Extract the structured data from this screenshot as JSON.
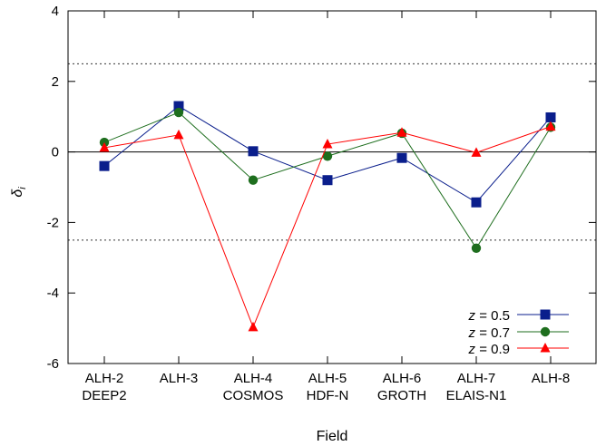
{
  "chart_data": {
    "type": "line",
    "title": "",
    "xlabel": "Field",
    "ylabel": "δ",
    "ylabel_subscript": "i",
    "ylim": [
      -6,
      4
    ],
    "yticks": [
      "4",
      "2",
      "0",
      "-2",
      "-4",
      "-6"
    ],
    "categories": [
      {
        "line1": "ALH-2",
        "line2": "DEEP2"
      },
      {
        "line1": "ALH-3",
        "line2": ""
      },
      {
        "line1": "ALH-4",
        "line2": "COSMOS"
      },
      {
        "line1": "ALH-5",
        "line2": "HDF-N"
      },
      {
        "line1": "ALH-6",
        "line2": "GROTH"
      },
      {
        "line1": "ALH-7",
        "line2": "ELAIS-N1"
      },
      {
        "line1": "ALH-8",
        "line2": ""
      }
    ],
    "reference_lines": [
      {
        "y": 2.5,
        "style": "dotted"
      },
      {
        "y": 0,
        "style": "solid"
      },
      {
        "y": -2.5,
        "style": "dotted"
      }
    ],
    "legend_position": "bottom-right",
    "series": [
      {
        "name_var": "z",
        "name_value": " = 0.5",
        "color": "#0a1e8c",
        "marker": "square",
        "values": [
          -0.4,
          1.3,
          0.02,
          -0.8,
          -0.17,
          -1.43,
          0.98
        ]
      },
      {
        "name_var": "z",
        "name_value": " = 0.7",
        "color": "#1e6e1e",
        "marker": "circle",
        "values": [
          0.27,
          1.12,
          -0.8,
          -0.12,
          0.53,
          -2.73,
          0.7
        ]
      },
      {
        "name_var": "z",
        "name_value": " = 0.9",
        "color": "#ff0000",
        "marker": "triangle",
        "values": [
          0.12,
          0.48,
          -4.97,
          0.22,
          0.55,
          -0.02,
          0.72
        ]
      }
    ]
  }
}
